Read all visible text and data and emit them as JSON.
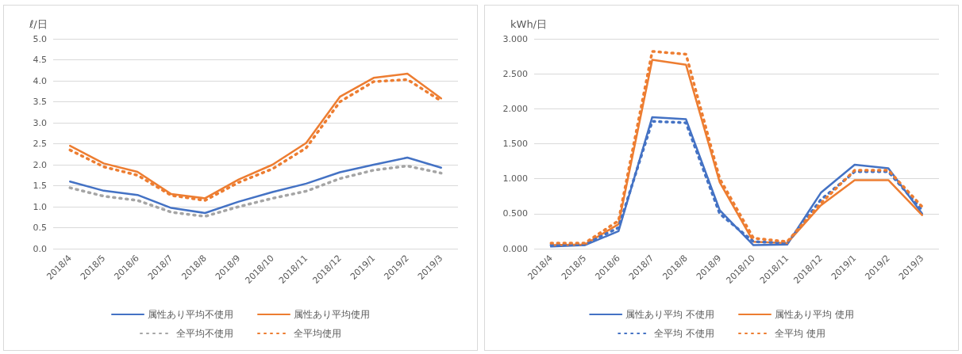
{
  "chart_data": [
    {
      "type": "line",
      "ylabel": "ℓ/日",
      "categories": [
        "2018/4",
        "2018/5",
        "2018/6",
        "2018/7",
        "2018/8",
        "2018/9",
        "2018/10",
        "2018/11",
        "2018/12",
        "2019/1",
        "2019/2",
        "2019/3"
      ],
      "series": [
        {
          "name": "属性あり平均不使用",
          "color": "#4472c4",
          "line_style": "solid",
          "values": [
            1.6,
            1.38,
            1.28,
            0.97,
            0.85,
            1.12,
            1.35,
            1.55,
            1.82,
            2.0,
            2.17,
            1.93
          ]
        },
        {
          "name": "属性あり平均使用",
          "color": "#ed7d31",
          "line_style": "solid",
          "values": [
            2.45,
            2.03,
            1.83,
            1.3,
            1.2,
            1.65,
            2.0,
            2.52,
            3.62,
            4.07,
            4.17,
            3.58
          ]
        },
        {
          "name": "全平均不使用",
          "color": "#a5a5a5",
          "line_style": "dotted",
          "values": [
            1.45,
            1.25,
            1.15,
            0.87,
            0.77,
            1.0,
            1.2,
            1.37,
            1.67,
            1.87,
            1.97,
            1.8
          ]
        },
        {
          "name": "全平均使用",
          "color": "#ed7d31",
          "line_style": "dotted",
          "values": [
            2.35,
            1.95,
            1.75,
            1.27,
            1.15,
            1.58,
            1.9,
            2.4,
            3.5,
            3.98,
            4.03,
            3.52
          ]
        }
      ],
      "ylim": [
        0,
        5
      ],
      "yticks": [
        {
          "value": 0,
          "label": "0.0"
        },
        {
          "value": 0.5,
          "label": "0.5"
        },
        {
          "value": 1,
          "label": "1.0"
        },
        {
          "value": 1.5,
          "label": "1.5"
        },
        {
          "value": 2,
          "label": "2.0"
        },
        {
          "value": 2.5,
          "label": "2.5"
        },
        {
          "value": 3,
          "label": "3.0"
        },
        {
          "value": 3.5,
          "label": "3.5"
        },
        {
          "value": 4,
          "label": "4.0"
        },
        {
          "value": 4.5,
          "label": "4.5"
        },
        {
          "value": 5,
          "label": "5.0"
        }
      ],
      "grid": "y",
      "legend": "bottom",
      "marker": "none"
    },
    {
      "type": "line",
      "ylabel": "kWh/日",
      "categories": [
        "2018/4",
        "2018/5",
        "2018/6",
        "2018/7",
        "2018/8",
        "2018/9",
        "2018/10",
        "2018/11",
        "2018/12",
        "2019/1",
        "2019/2",
        "2019/3"
      ],
      "series": [
        {
          "name": "属性あり平均 不使用",
          "color": "#4472c4",
          "line_style": "solid",
          "values": [
            0.03,
            0.05,
            0.25,
            1.88,
            1.85,
            0.55,
            0.05,
            0.06,
            0.8,
            1.2,
            1.15,
            0.5
          ]
        },
        {
          "name": "属性あり平均 使用",
          "color": "#ed7d31",
          "line_style": "solid",
          "values": [
            0.05,
            0.06,
            0.35,
            2.7,
            2.63,
            0.95,
            0.1,
            0.08,
            0.62,
            0.98,
            0.98,
            0.48
          ]
        },
        {
          "name": "全平均 不使用",
          "color": "#4472c4",
          "line_style": "dotted",
          "values": [
            0.05,
            0.06,
            0.3,
            1.82,
            1.8,
            0.5,
            0.1,
            0.08,
            0.7,
            1.1,
            1.1,
            0.55
          ]
        },
        {
          "name": "全平均 使用",
          "color": "#ed7d31",
          "line_style": "dotted",
          "values": [
            0.08,
            0.08,
            0.4,
            2.82,
            2.78,
            1.0,
            0.15,
            0.1,
            0.65,
            1.12,
            1.12,
            0.6
          ]
        }
      ],
      "ylim": [
        0,
        3
      ],
      "yticks": [
        {
          "value": 0,
          "label": "0.000"
        },
        {
          "value": 0.5,
          "label": "0.500"
        },
        {
          "value": 1,
          "label": "1.000"
        },
        {
          "value": 1.5,
          "label": "1.500"
        },
        {
          "value": 2,
          "label": "2.000"
        },
        {
          "value": 2.5,
          "label": "2.500"
        },
        {
          "value": 3,
          "label": "3.000"
        }
      ],
      "grid": "y",
      "legend": "bottom",
      "marker": "none"
    }
  ]
}
